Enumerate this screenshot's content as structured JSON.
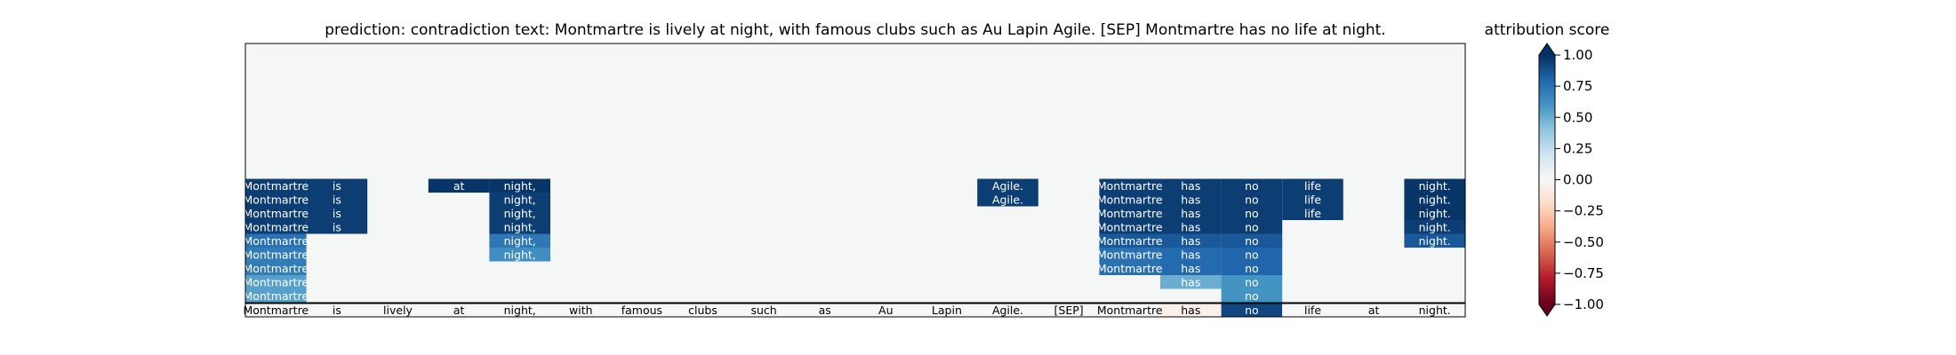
{
  "chart_data": {
    "type": "heatmap",
    "title": "prediction:  contradiction     text:  Montmartre is lively at night, with famous clubs such as Au Lapin Agile. [SEP] Montmartre has no life at night.",
    "colorbar_title": "attribution score",
    "colorbar_ticks": [
      "1.00",
      "0.75",
      "0.50",
      "0.25",
      "0.00",
      "−0.25",
      "−0.50",
      "−0.75",
      "−1.00"
    ],
    "colorbar_tick_values": [
      1.0,
      0.75,
      0.5,
      0.25,
      0.0,
      -0.25,
      -0.5,
      -0.75,
      -1.0
    ],
    "clim": [
      -1,
      1
    ],
    "colormap": [
      "#67001f",
      "#b2182b",
      "#d6604d",
      "#f4a582",
      "#fddbc7",
      "#f7f7f7",
      "#d1e5f0",
      "#92c5de",
      "#4393c3",
      "#2166ac",
      "#053061"
    ],
    "background_color": "#f5f7f7",
    "tokens": [
      "Montmartre",
      "is",
      "lively",
      "at",
      "night,",
      "with",
      "famous",
      "clubs",
      "such",
      "as",
      "Au",
      "Lapin",
      "Agile.",
      "[SEP]",
      "Montmartre",
      "has",
      "no",
      "life",
      "at",
      "night."
    ],
    "baseline_row": [
      0.02,
      0,
      0,
      0,
      0,
      0,
      0,
      0,
      0,
      0,
      0,
      0,
      0,
      0,
      0,
      -0.05,
      0.92,
      0,
      0,
      0
    ],
    "layers": [
      [
        0.95,
        0.95,
        null,
        0.98,
        0.98,
        null,
        null,
        null,
        null,
        null,
        null,
        null,
        0.95,
        null,
        0.95,
        0.95,
        0.95,
        0.95,
        null,
        0.98
      ],
      [
        0.95,
        0.95,
        null,
        null,
        0.95,
        null,
        null,
        null,
        null,
        null,
        null,
        null,
        0.95,
        null,
        0.95,
        0.95,
        0.95,
        0.95,
        null,
        0.98
      ],
      [
        0.95,
        0.95,
        null,
        null,
        0.95,
        null,
        null,
        null,
        null,
        null,
        null,
        null,
        null,
        null,
        0.95,
        0.95,
        0.95,
        0.95,
        null,
        0.98
      ],
      [
        0.95,
        0.95,
        null,
        null,
        0.95,
        null,
        null,
        null,
        null,
        null,
        null,
        null,
        null,
        null,
        0.95,
        0.95,
        0.95,
        null,
        null,
        0.95
      ],
      [
        0.75,
        null,
        null,
        null,
        0.72,
        null,
        null,
        null,
        null,
        null,
        null,
        null,
        null,
        null,
        0.85,
        0.85,
        0.85,
        null,
        null,
        0.85
      ],
      [
        0.7,
        null,
        null,
        null,
        0.62,
        null,
        null,
        null,
        null,
        null,
        null,
        null,
        null,
        null,
        0.75,
        0.78,
        0.8,
        null,
        null,
        null
      ],
      [
        0.7,
        null,
        null,
        null,
        null,
        null,
        null,
        null,
        null,
        null,
        null,
        null,
        null,
        null,
        0.75,
        0.78,
        0.8,
        null,
        null,
        null
      ],
      [
        0.55,
        null,
        null,
        null,
        null,
        null,
        null,
        null,
        null,
        null,
        null,
        null,
        null,
        null,
        null,
        0.5,
        0.6,
        null,
        null,
        null
      ],
      [
        0.55,
        null,
        null,
        null,
        null,
        null,
        null,
        null,
        null,
        null,
        null,
        null,
        null,
        null,
        null,
        null,
        0.6,
        null,
        null,
        null
      ]
    ]
  }
}
